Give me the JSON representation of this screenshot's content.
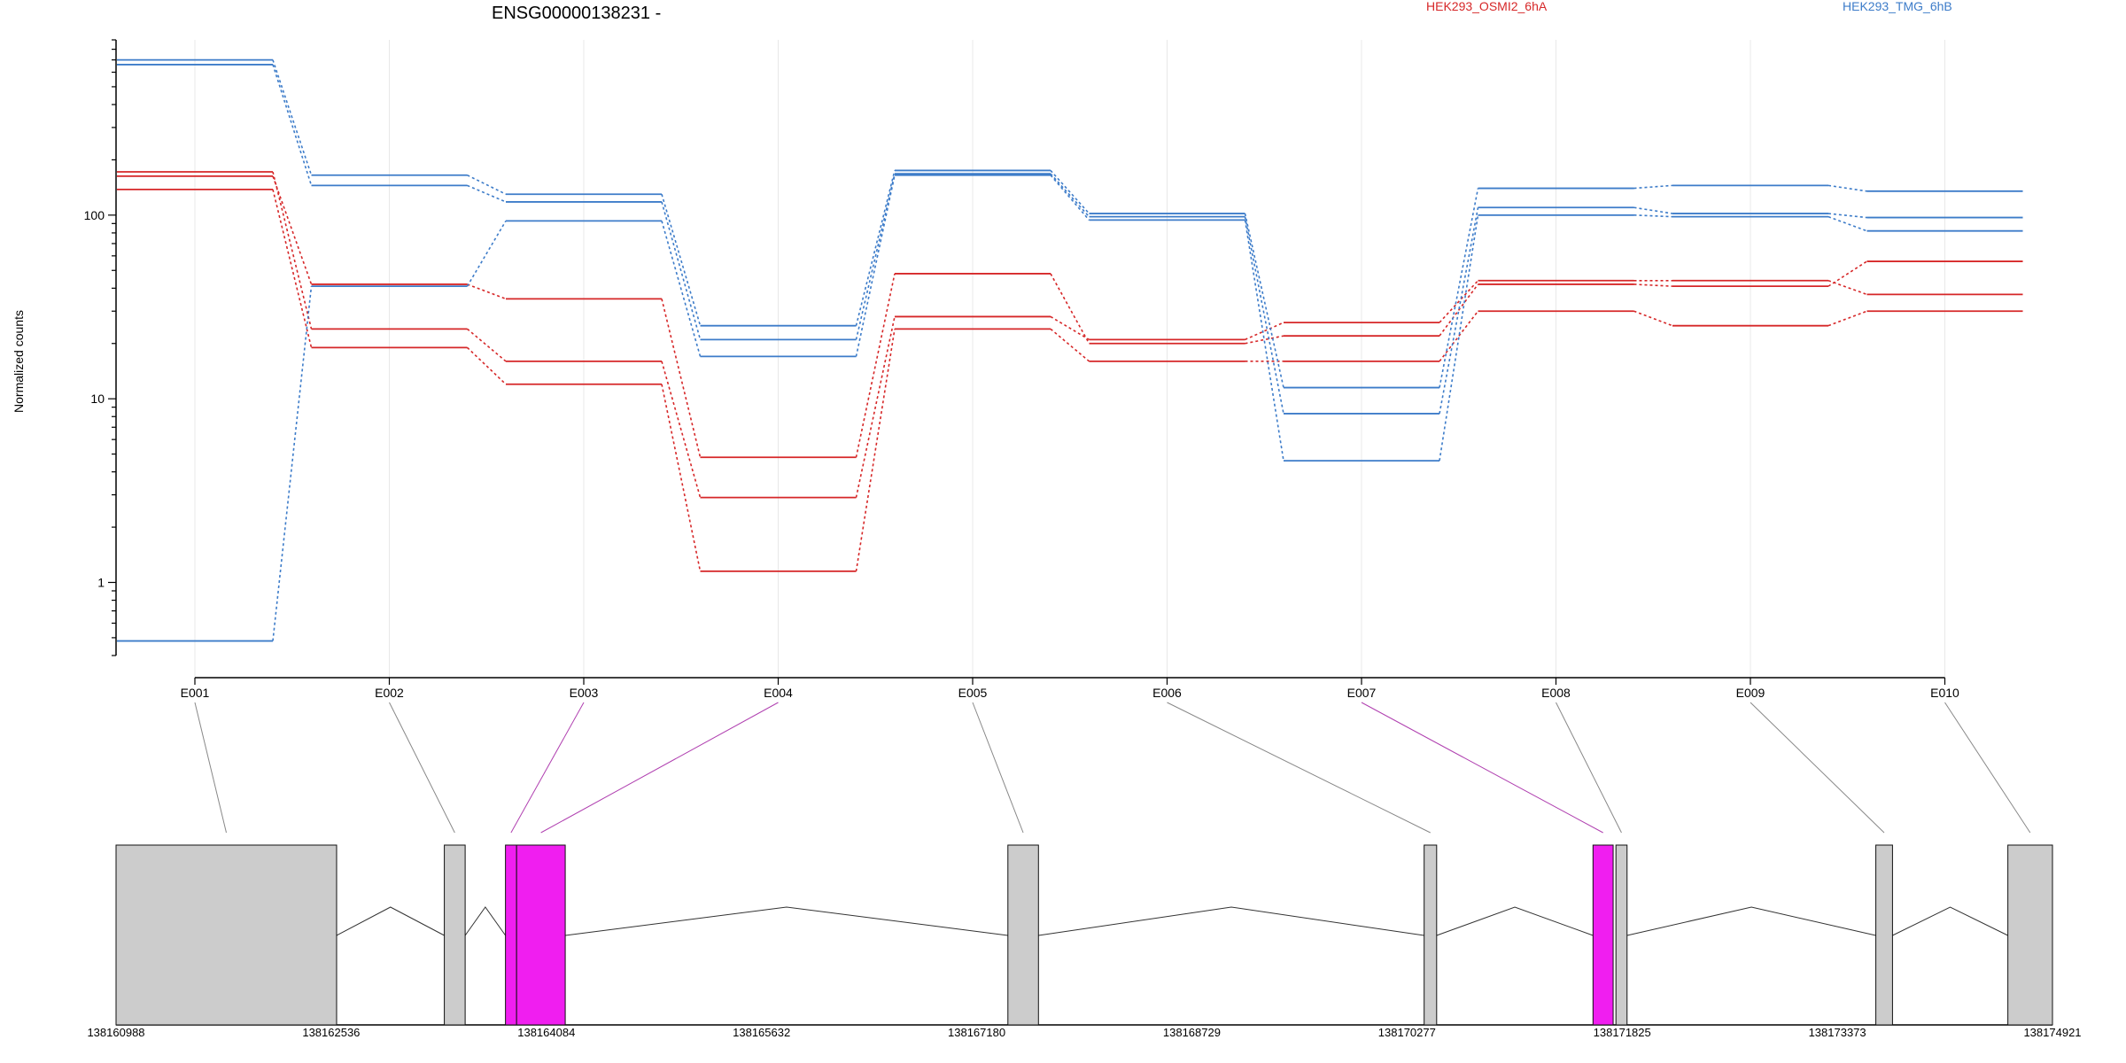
{
  "chart_data": {
    "type": "line",
    "title": "ENSG00000138231 -",
    "ylabel": "Normalized counts",
    "yscale": "log",
    "ylim": [
      0.4,
      900
    ],
    "yticks": [
      1,
      10,
      100
    ],
    "ytick_labels": [
      "1",
      "10",
      "100"
    ],
    "categories": [
      "E001",
      "E002",
      "E003",
      "E004",
      "E005",
      "E006",
      "E007",
      "E008",
      "E009",
      "E010"
    ],
    "legend": [
      {
        "name": "HEK293_OSMI2_6hA",
        "color": "#d62728"
      },
      {
        "name": "HEK293_TMG_6hB",
        "color": "#3d7cc9"
      }
    ],
    "series": [
      {
        "group": "HEK293_OSMI2_6hA",
        "color": "#d62728",
        "values": [
          172,
          24,
          16,
          2.9,
          28,
          21,
          26,
          44,
          44,
          37
        ]
      },
      {
        "group": "HEK293_OSMI2_6hA",
        "color": "#d62728",
        "values": [
          163,
          42,
          35,
          4.8,
          48,
          20,
          22,
          42,
          41,
          56
        ]
      },
      {
        "group": "HEK293_OSMI2_6hA",
        "color": "#d62728",
        "values": [
          138,
          19,
          12,
          1.15,
          24,
          16,
          16,
          30,
          25,
          30
        ]
      },
      {
        "group": "HEK293_TMG_6hB",
        "color": "#3d7cc9",
        "values": [
          700,
          165,
          130,
          25,
          175,
          102,
          11.5,
          140,
          145,
          135
        ]
      },
      {
        "group": "HEK293_TMG_6hB",
        "color": "#3d7cc9",
        "values": [
          660,
          145,
          118,
          21,
          168,
          98,
          8.3,
          110,
          102,
          97
        ]
      },
      {
        "group": "HEK293_TMG_6hB",
        "color": "#3d7cc9",
        "values": [
          0.48,
          41,
          93,
          17,
          165,
          94,
          4.6,
          100,
          98,
          82
        ]
      }
    ],
    "gene_model": {
      "coordinate_labels": [
        "138160988",
        "138162536",
        "138164084",
        "138165632",
        "138167180",
        "138168729",
        "138170277",
        "138171825",
        "138173373",
        "138174921"
      ],
      "genomic_range": [
        138160988,
        138174921
      ],
      "exon_colors": {
        "normal": "#cccccc",
        "highlight": "#f01ef0"
      },
      "exons": [
        {
          "start": 138160988,
          "end": 138162575,
          "highlight": false,
          "bin": "E001"
        },
        {
          "start": 138163350,
          "end": 138163500,
          "highlight": false,
          "bin": "E002"
        },
        {
          "start": 138163790,
          "end": 138163870,
          "highlight": true,
          "bin": "E003"
        },
        {
          "start": 138163870,
          "end": 138164220,
          "highlight": true,
          "bin": "E004"
        },
        {
          "start": 138167405,
          "end": 138167625,
          "highlight": false,
          "bin": "E005"
        },
        {
          "start": 138170400,
          "end": 138170490,
          "highlight": false,
          "bin": "E006"
        },
        {
          "start": 138171615,
          "end": 138171760,
          "highlight": true,
          "bin": "E007"
        },
        {
          "start": 138171780,
          "end": 138171860,
          "highlight": false,
          "bin": "E008"
        },
        {
          "start": 138173650,
          "end": 138173770,
          "highlight": false,
          "bin": "E009"
        },
        {
          "start": 138174600,
          "end": 138174921,
          "highlight": false,
          "bin": "E010"
        }
      ]
    }
  }
}
